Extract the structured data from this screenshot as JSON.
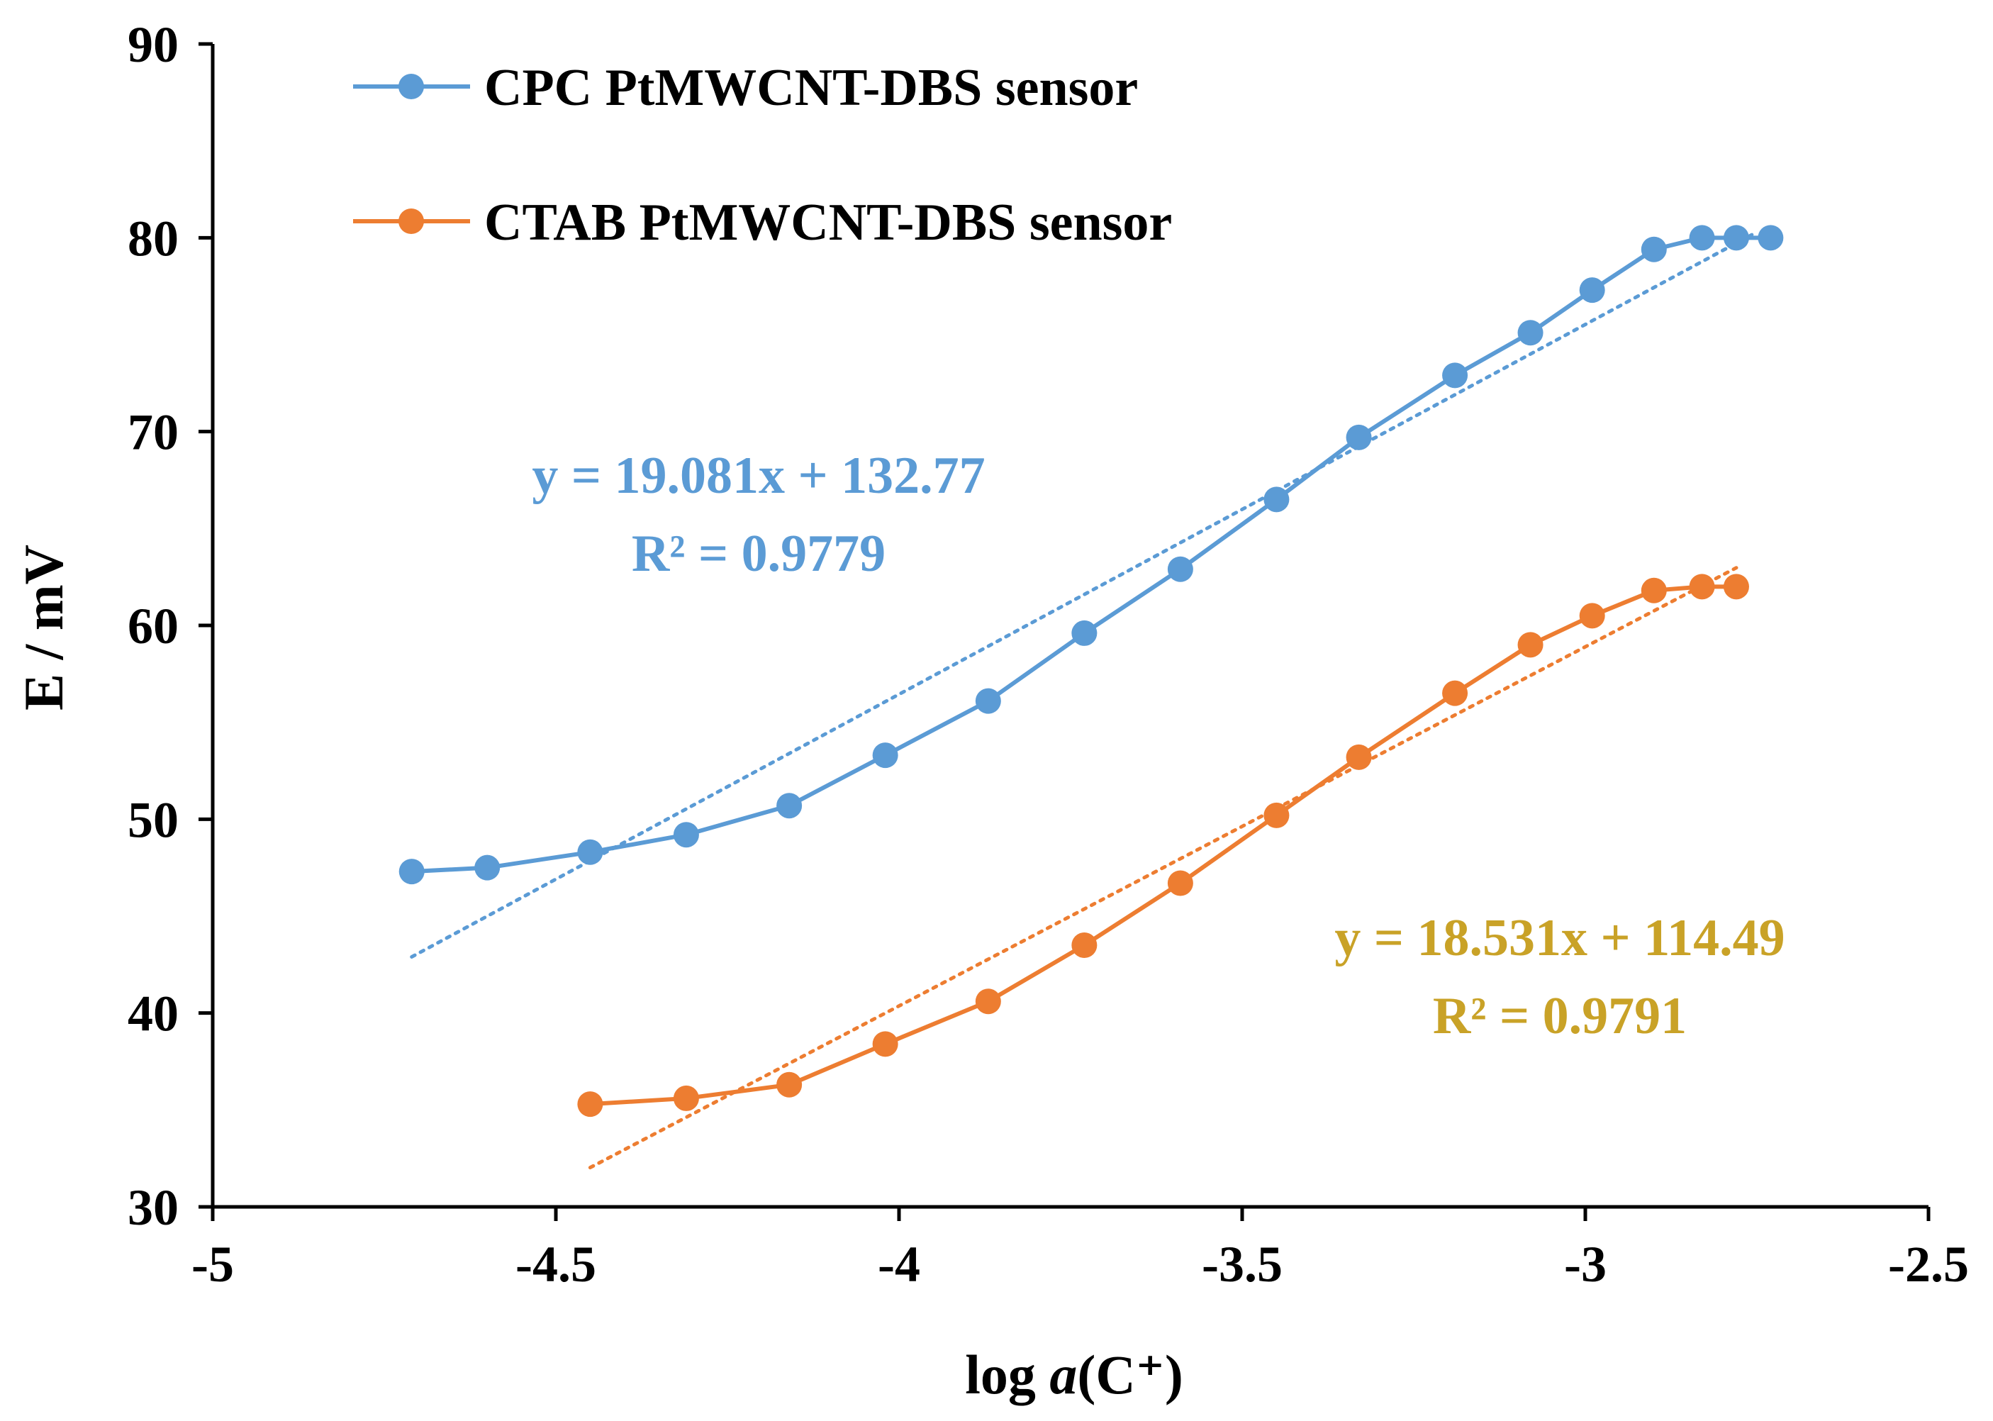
{
  "chart_data": {
    "type": "line",
    "title": "",
    "xlabel": {
      "prefix": "log ",
      "italic": "a",
      "suffix": "(C⁺)"
    },
    "ylabel": "E / mV",
    "xlim": [
      -5,
      -2.5
    ],
    "ylim": [
      30,
      90
    ],
    "x_ticks": [
      -5,
      -4.5,
      -4,
      -3.5,
      -3,
      -2.5
    ],
    "x_tick_labels": [
      "-5",
      "-4.5",
      "-4",
      "-3.5",
      "-3",
      "-2.5"
    ],
    "y_ticks": [
      30,
      40,
      50,
      60,
      70,
      80,
      90
    ],
    "y_tick_labels": [
      "30",
      "40",
      "50",
      "60",
      "70",
      "80",
      "90"
    ],
    "grid": false,
    "legend_position": "top-left",
    "series": [
      {
        "name": "CPC PtMWCNT-DBS sensor",
        "color": "#5B9BD5",
        "x": [
          -4.71,
          -4.6,
          -4.45,
          -4.31,
          -4.16,
          -4.02,
          -3.87,
          -3.73,
          -3.59,
          -3.45,
          -3.33,
          -3.19,
          -3.08,
          -2.99,
          -2.9,
          -2.83,
          -2.78,
          -2.73
        ],
        "y": [
          47.3,
          47.5,
          48.3,
          49.2,
          50.7,
          53.3,
          56.1,
          59.6,
          62.9,
          66.5,
          69.7,
          72.9,
          75.1,
          77.3,
          79.4,
          80.0,
          80.0,
          80.0
        ],
        "trendline": {
          "equation": "y = 19.081x + 132.77",
          "r2": "R² = 0.9779",
          "slope": 19.081,
          "intercept": 132.77,
          "x_range": [
            -4.71,
            -2.75
          ],
          "label_color": "#5B9BD5"
        }
      },
      {
        "name": "CTAB PtMWCNT-DBS sensor",
        "color": "#ED7D31",
        "x": [
          -4.45,
          -4.31,
          -4.16,
          -4.02,
          -3.87,
          -3.73,
          -3.59,
          -3.45,
          -3.33,
          -3.19,
          -3.08,
          -2.99,
          -2.9,
          -2.83,
          -2.78
        ],
        "y": [
          35.3,
          35.6,
          36.3,
          38.4,
          40.6,
          43.5,
          46.7,
          50.2,
          53.2,
          56.5,
          59.0,
          60.5,
          61.8,
          62.0,
          62.0
        ],
        "trendline": {
          "equation": "y = 18.531x + 114.49",
          "r2": "R² = 0.9791",
          "slope": 18.531,
          "intercept": 114.49,
          "x_range": [
            -4.45,
            -2.78
          ],
          "label_color": "#C9A227"
        }
      }
    ]
  }
}
